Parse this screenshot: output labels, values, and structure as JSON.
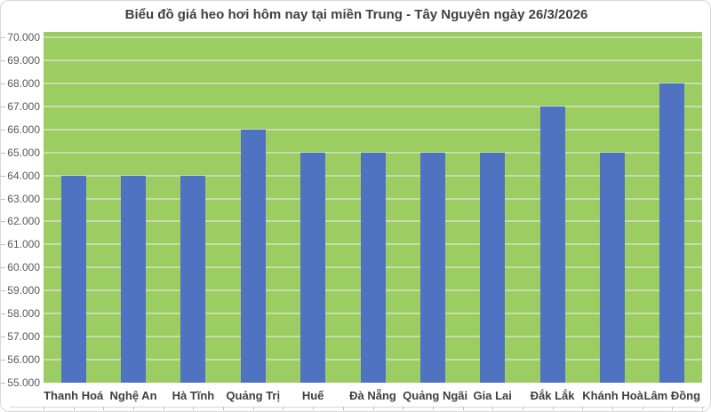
{
  "chart_data": {
    "type": "bar",
    "title": "Biểu đồ giá heo hơi hôm nay tại miền Trung - Tây Nguyên ngày 26/3/2026",
    "categories": [
      "Thanh Hoá",
      "Nghệ An",
      "Hà Tĩnh",
      "Quảng Trị",
      "Huế",
      "Đà Nẵng",
      "Quảng Ngãi",
      "Gia Lai",
      "Đắk Lắk",
      "Khánh Hoà",
      "Lâm Đồng"
    ],
    "values": [
      64000,
      64000,
      64000,
      66000,
      65000,
      65000,
      65000,
      65000,
      67000,
      65000,
      68000
    ],
    "xlabel": "",
    "ylabel": "",
    "ylim": [
      55000,
      70000
    ],
    "y_tick_step": 1000,
    "y_tick_labels": [
      "70.000",
      "69.000",
      "68.000",
      "67.000",
      "66.000",
      "65.000",
      "64.000",
      "63.000",
      "62.000",
      "61.000",
      "60.000",
      "59.000",
      "58.000",
      "57.000",
      "56.000",
      "55.000"
    ],
    "grid": true,
    "legend_position": "none",
    "colors": {
      "bar": "#4F73C1",
      "plot_bg": "#9BCD62",
      "gridline": "#C9DCAB",
      "title_text": "#404040",
      "y_axis_text": "#595959",
      "category_text": "#3F3F3F",
      "chart_border": "#D7D7D7",
      "tick_mark": "#BFBFBF",
      "bottom_axis_line": "#D9D9D9"
    }
  }
}
